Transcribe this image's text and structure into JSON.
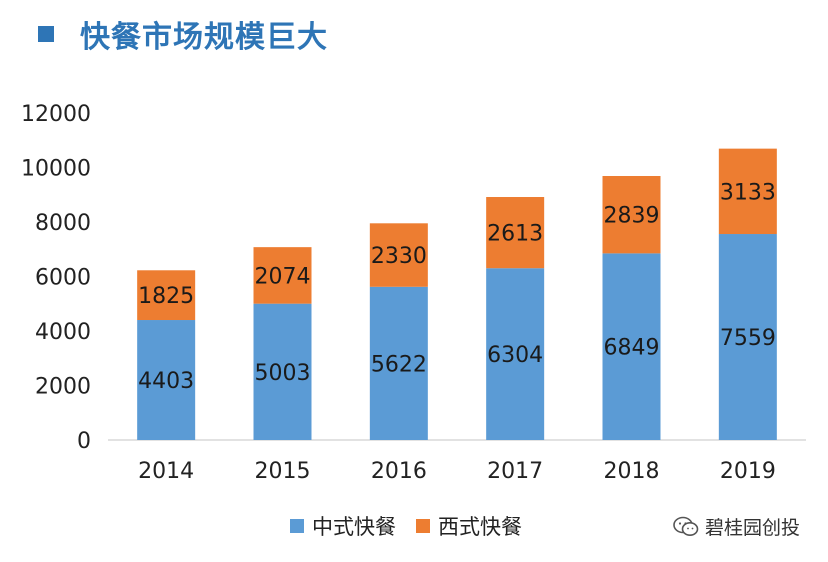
{
  "header": {
    "title": "快餐市场规模巨大"
  },
  "watermark": {
    "text": "碧桂园创投"
  },
  "colors": {
    "title": "#2e75b6",
    "chinese": "#5b9bd5",
    "western": "#ed7d31",
    "axis": "#d9d9d9",
    "text": "#222222"
  },
  "chart_data": {
    "type": "bar",
    "stacked": true,
    "categories": [
      "2014",
      "2015",
      "2016",
      "2017",
      "2018",
      "2019"
    ],
    "series": [
      {
        "name": "中式快餐",
        "color": "#5b9bd5",
        "values": [
          4403,
          5003,
          5622,
          6304,
          6849,
          7559
        ]
      },
      {
        "name": "西式快餐",
        "color": "#ed7d31",
        "values": [
          1825,
          2074,
          2330,
          2613,
          2839,
          3133
        ]
      }
    ],
    "ylim": [
      0,
      12000
    ],
    "yticks": [
      "0",
      "2000",
      "4000",
      "6000",
      "8000",
      "10000",
      "12000"
    ],
    "grid": false,
    "legend_position": "bottom"
  }
}
